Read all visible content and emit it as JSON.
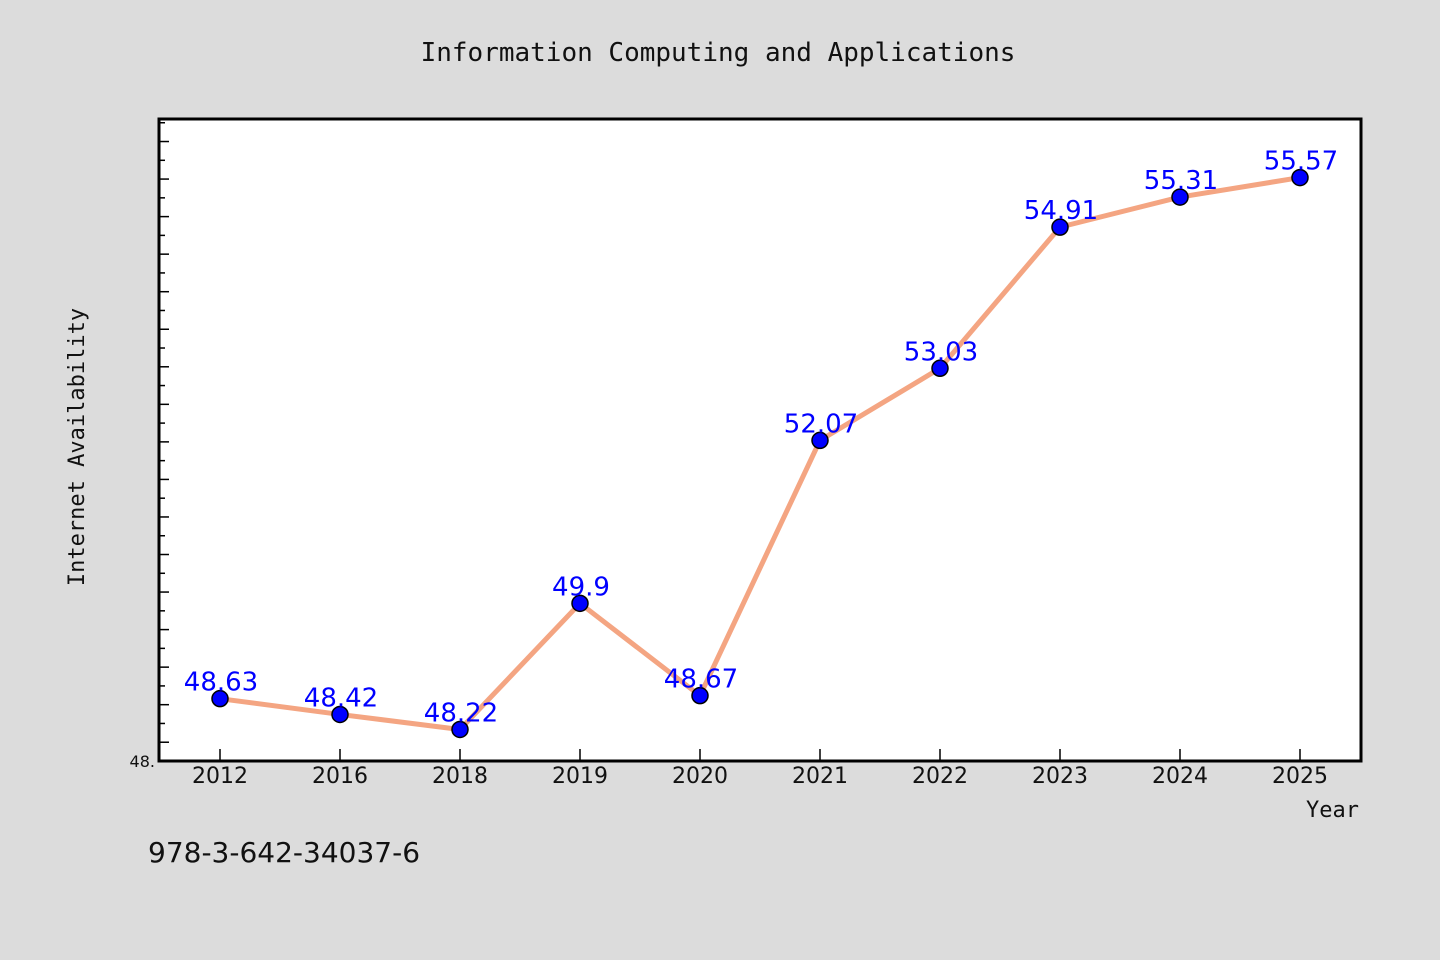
{
  "footer_text": "978-3-642-34037-6",
  "chart_data": {
    "type": "line",
    "title": "Information Computing and Applications",
    "xlabel": "Year",
    "ylabel": "Internet Availability",
    "categories": [
      "2012",
      "2016",
      "2018",
      "2019",
      "2020",
      "2021",
      "2022",
      "2023",
      "2024",
      "2025"
    ],
    "series": [
      {
        "values": [
          48.63,
          48.42,
          48.22,
          49.9,
          48.67,
          52.07,
          53.03,
          54.91,
          55.31,
          55.57
        ],
        "labels": [
          "48.63",
          "48.42",
          "48.22",
          "49.9",
          "48.67",
          "52.07",
          "53.03",
          "54.91",
          "55.31",
          "55.57"
        ],
        "line_color": "#f4a582",
        "marker_color": "#0000ff"
      }
    ],
    "ylim": [
      47.8,
      56.35
    ],
    "y_tick_labels": [
      "48."
    ],
    "y_tick_values": [
      47.8
    ],
    "grid": false,
    "legend": "none",
    "data_label_color": "#0000ff"
  }
}
